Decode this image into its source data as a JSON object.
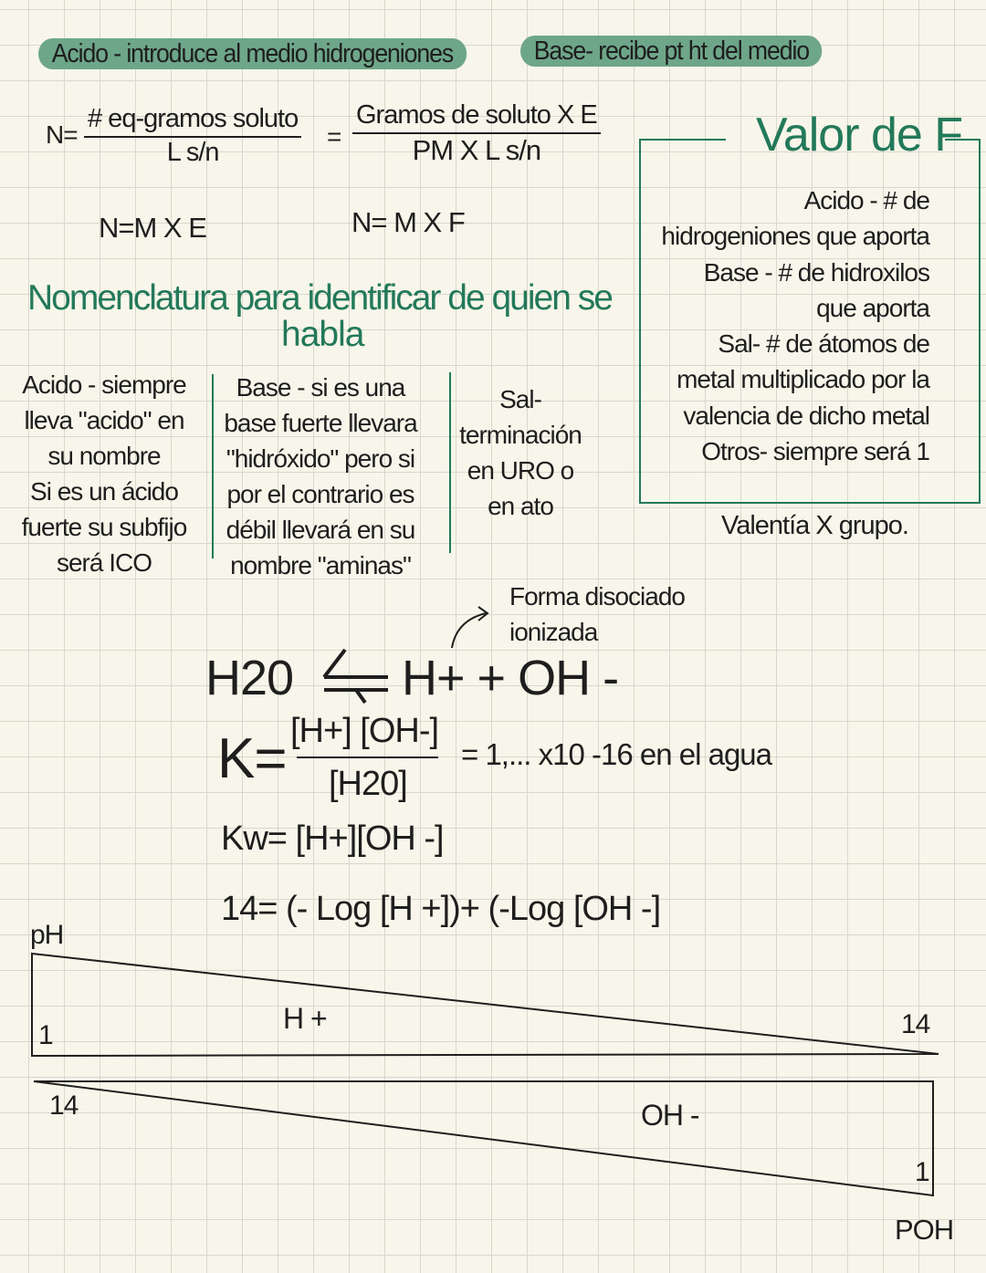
{
  "colors": {
    "accent": "#23795a",
    "pill": "#6ea689",
    "paper": "#f8f6ea",
    "grid": "#d8d8cc"
  },
  "header": {
    "acid_pill": "Acido - introduce al medio hidrogeniones",
    "base_pill": "Base- recibe pt ht del medio"
  },
  "formulas": {
    "n_prefix": "N=",
    "frac1_num": "# eq-gramos soluto",
    "frac1_den": "L s/n",
    "equals": "=",
    "frac2_num": "Gramos de soluto X E",
    "frac2_den": "PM X  L s/n",
    "n_mxe": "N=M X E",
    "n_mxf": "N= M X F"
  },
  "valor_f": {
    "title": "Valor de F",
    "lines": [
      "Acido - # de",
      "hidrogeniones que aporta",
      "Base - # de hidroxilos",
      "que aporta",
      "Sal- # de átomos de",
      "metal multiplicado por la",
      "valencia de dicho metal",
      "Otros- siempre será 1"
    ],
    "footer": "Valentía X grupo."
  },
  "nomenclatura": {
    "title_line1": "Nomenclatura para identificar de quien se",
    "title_line2": "habla",
    "columns": [
      {
        "lines": [
          "Acido - siempre",
          "lleva \"acido\" en",
          "su nombre",
          "Si es un ácido",
          "fuerte su subfijo",
          "será ICO"
        ]
      },
      {
        "lines": [
          "Base - si es una",
          "base fuerte llevara",
          "\"hidróxido\" pero si",
          "por el contrario es",
          "débil llevará en su",
          "nombre \"aminas\""
        ]
      },
      {
        "lines": [
          "Sal-",
          "terminación",
          "en URO o",
          "en ato"
        ]
      }
    ]
  },
  "equilibrium": {
    "annotation_line1": "Forma disociado",
    "annotation_line2": "ionizada",
    "reactant": "H20",
    "products": "H+ + OH -",
    "k_label": "K=",
    "k_num": "[H+] [OH-]",
    "k_den": "[H20]",
    "k_value": "= 1,... x10 -16 en el agua",
    "kw": "Kw= [H+][OH -]",
    "log_eq": "14= (- Log [H +])+ (-Log [OH -]"
  },
  "scales": {
    "ph_label": "pH",
    "ph_low": "1",
    "ph_ion": "H +",
    "ph_high": "14",
    "poh_low_left": "14",
    "poh_ion": "OH -",
    "poh_right": "1",
    "poh_label": "POH"
  }
}
